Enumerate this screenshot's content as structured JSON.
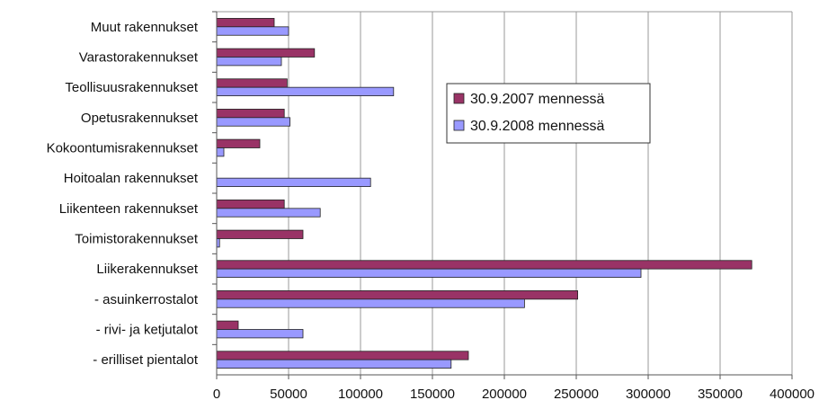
{
  "chart_data": {
    "type": "bar",
    "orientation": "horizontal",
    "categories": [
      "Muut rakennukset",
      "Varastorakennukset",
      "Teollisuusrakennukset",
      "Opetusrakennukset",
      "Kokoontumisrakennukset",
      "Hoitoalan rakennukset",
      "Liikenteen rakennukset",
      "Toimistorakennukset",
      "Liikerakennukset",
      "- asuinkerrostalot",
      "- rivi- ja ketjutalot",
      "- erilliset pientalot"
    ],
    "series": [
      {
        "name": "30.9.2007 mennessä",
        "color": "#993366",
        "values": [
          40000,
          68000,
          49000,
          47000,
          30000,
          0,
          47000,
          60000,
          372000,
          251000,
          15000,
          175000
        ]
      },
      {
        "name": "30.9.2008 mennessä",
        "color": "#9999ff",
        "values": [
          50000,
          45000,
          123000,
          51000,
          5000,
          107000,
          72000,
          2000,
          295000,
          214000,
          60000,
          163000
        ]
      }
    ],
    "xlim": [
      0,
      400000
    ],
    "xticks": [
      "0",
      "50000",
      "100000",
      "150000",
      "200000",
      "250000",
      "300000",
      "350000",
      "400000"
    ],
    "grid": true,
    "legend_position": "right"
  }
}
